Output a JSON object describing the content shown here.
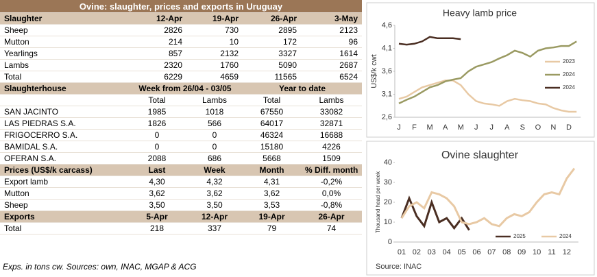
{
  "table": {
    "title": "Ovine: slaughter, prices and exports in Uruguay",
    "sections": [
      {
        "header": [
          "Slaughter",
          "12-Apr",
          "19-Apr",
          "26-Apr",
          "3-May"
        ],
        "rows": [
          [
            "Sheep",
            "2826",
            "730",
            "2895",
            "2123"
          ],
          [
            "Mutton",
            "214",
            "10",
            "172",
            "96"
          ],
          [
            "Yearlings",
            "857",
            "2132",
            "3327",
            "1614"
          ],
          [
            "Lambs",
            "2320",
            "1760",
            "5090",
            "2687"
          ],
          [
            "Total",
            "6229",
            "4659",
            "11565",
            "6524"
          ]
        ]
      },
      {
        "header": [
          "Slaughterhouse",
          "Week from 26/04 - 03/05",
          "Year to date"
        ],
        "subheader": [
          "Total",
          "Lambs",
          "Total",
          "Lambs"
        ],
        "rows": [
          [
            "SAN JACINTO",
            "1985",
            "1018",
            "67550",
            "33082"
          ],
          [
            "LAS PIEDRAS S.A.",
            "1826",
            "566",
            "64017",
            "32871"
          ],
          [
            "FRIGOCERRO S.A.",
            "0",
            "0",
            "46324",
            "16688"
          ],
          [
            "BAMIDAL S.A.",
            "0",
            "0",
            "15180",
            "4226"
          ],
          [
            "OFERAN S.A.",
            "2088",
            "686",
            "5668",
            "1509"
          ]
        ]
      },
      {
        "header": [
          "Prices (US$/k carcass)",
          "Last",
          "Week",
          "Month",
          "% Diff. month"
        ],
        "rows": [
          [
            "Export lamb",
            "4,30",
            "4,32",
            "4,31",
            "-0,2%"
          ],
          [
            "Mutton",
            "3,62",
            "3,62",
            "3,62",
            "0,0%"
          ],
          [
            "Sheep",
            "3,50",
            "3,50",
            "3,53",
            "-0,8%"
          ]
        ]
      },
      {
        "header": [
          "Exports",
          "5-Apr",
          "12-Apr",
          "19-Apr",
          "26-Apr"
        ],
        "rows": [
          [
            "Total",
            "218",
            "337",
            "79",
            "74"
          ]
        ]
      }
    ],
    "footnote": "Exps. in tons cw. Sources: own, INAC, MGAP & ACG"
  },
  "chart_data": [
    {
      "type": "line",
      "title": "Heavy lamb price",
      "y_label": "US$/k cwt",
      "categories": [
        "J",
        null,
        "F",
        null,
        "M",
        null,
        "A",
        null,
        "M",
        null,
        "J",
        null,
        "J",
        null,
        "A",
        null,
        "S",
        null,
        "O",
        null,
        "N",
        null,
        "D",
        null
      ],
      "ylim": [
        2.6,
        4.6
      ],
      "yticks": [
        {
          "value": 2.6,
          "label": "2,6"
        },
        {
          "value": 3.1,
          "label": "3,1"
        },
        {
          "value": 3.6,
          "label": "3,6"
        },
        {
          "value": 4.1,
          "label": "4,1"
        },
        {
          "value": 4.6,
          "label": "4,6"
        }
      ],
      "legend": "right",
      "series": [
        {
          "name": "2023",
          "color": "#e8c9a4",
          "values": [
            3.0,
            3.05,
            3.15,
            3.25,
            3.3,
            3.35,
            3.4,
            3.4,
            3.3,
            3.1,
            2.95,
            2.9,
            2.88,
            2.85,
            2.95,
            3.0,
            2.97,
            2.95,
            2.9,
            2.88,
            2.8,
            2.75,
            2.72,
            2.72
          ]
        },
        {
          "name": "2024",
          "color": "#9a9a62",
          "values": [
            2.9,
            2.98,
            3.05,
            3.15,
            3.25,
            3.3,
            3.38,
            3.42,
            3.45,
            3.6,
            3.7,
            3.75,
            3.8,
            3.88,
            3.95,
            4.05,
            4.0,
            3.92,
            4.05,
            4.1,
            4.12,
            4.15,
            4.15,
            4.25
          ]
        },
        {
          "name": "2024",
          "color": "#4a2e22",
          "values": [
            4.2,
            4.18,
            4.2,
            4.25,
            4.35,
            4.32,
            4.32,
            4.32,
            4.3,
            null,
            null,
            null,
            null,
            null,
            null,
            null,
            null,
            null,
            null,
            null,
            null,
            null,
            null,
            null
          ]
        }
      ]
    },
    {
      "type": "line",
      "title": "Ovine slaughter",
      "y_label": "Thousand head per week",
      "source": "Source: INAC",
      "categories": [
        "01",
        null,
        "02",
        null,
        "03",
        null,
        "04",
        null,
        "05",
        null,
        "06",
        null,
        "07",
        null,
        "08",
        null,
        "09",
        null,
        "10",
        null,
        "11",
        null,
        "12",
        null
      ],
      "ylim": [
        0,
        40
      ],
      "yticks": [
        0,
        10,
        20,
        30,
        40
      ],
      "legend": "bottom",
      "series": [
        {
          "name": "2025",
          "color": "#4a2e22",
          "values": [
            12,
            22,
            13,
            8,
            20,
            10,
            12,
            7,
            12,
            6,
            null,
            null,
            null,
            null,
            null,
            null,
            null,
            null,
            null,
            null,
            null,
            null,
            null,
            null
          ]
        },
        {
          "name": "2024",
          "color": "#e8c9a4",
          "values": [
            12,
            18,
            20,
            17,
            25,
            24,
            22,
            18,
            10,
            9,
            10,
            12,
            9,
            8,
            12,
            14,
            13,
            15,
            20,
            24,
            25,
            24,
            32,
            37
          ]
        }
      ]
    }
  ]
}
